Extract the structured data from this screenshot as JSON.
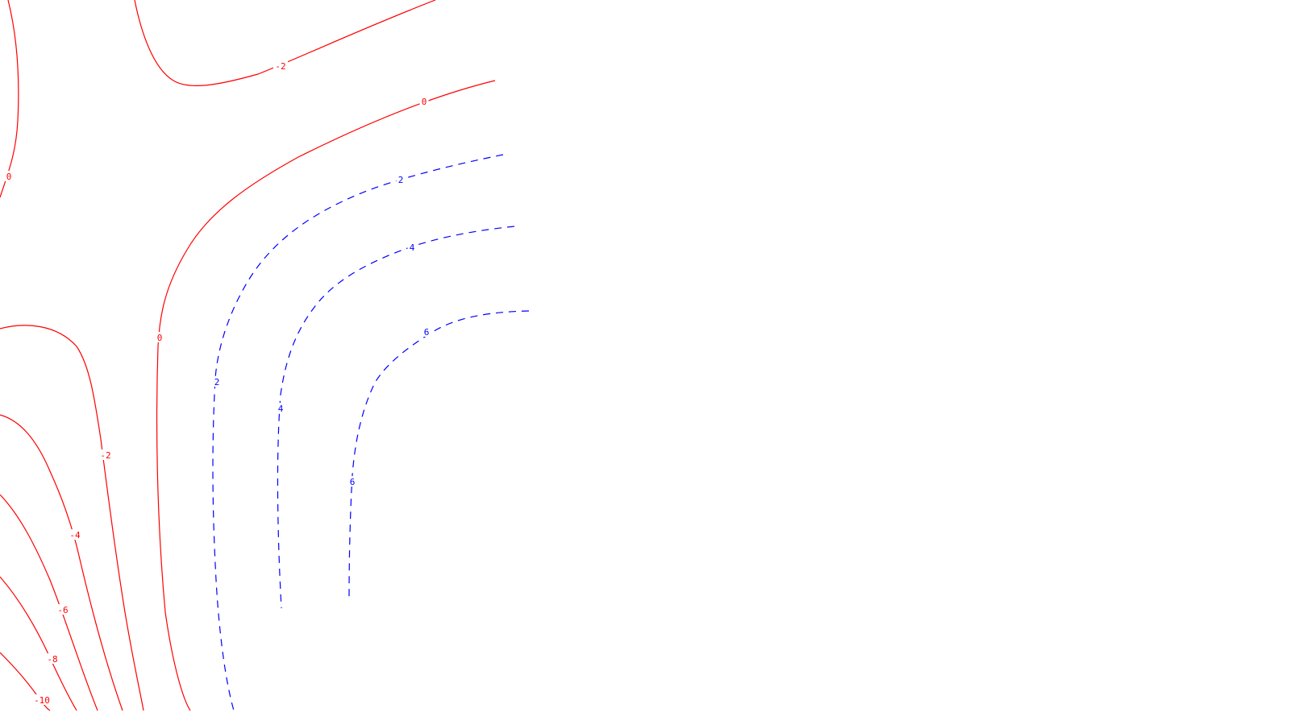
{
  "chart_data": {
    "type": "contour",
    "title": "",
    "xlabel": "",
    "ylabel": "",
    "colors": {
      "negative": "#ff0000",
      "positive": "#0000ff"
    },
    "line_styles": {
      "negative_and_zero": "solid",
      "positive": "dashed"
    },
    "levels": [
      {
        "value": -10,
        "label": "-10",
        "style": "solid"
      },
      {
        "value": -8,
        "label": "-8",
        "style": "solid"
      },
      {
        "value": -6,
        "label": "-6",
        "style": "solid"
      },
      {
        "value": -4,
        "label": "-4",
        "style": "solid"
      },
      {
        "value": -2,
        "label": "-2",
        "style": "solid"
      },
      {
        "value": 0,
        "label": "0",
        "style": "solid"
      },
      {
        "value": 2,
        "label": "2",
        "style": "dashed"
      },
      {
        "value": 4,
        "label": "4",
        "style": "dashed"
      },
      {
        "value": 6,
        "label": "6",
        "style": "dashed"
      }
    ],
    "grid": false,
    "legend": "none"
  }
}
